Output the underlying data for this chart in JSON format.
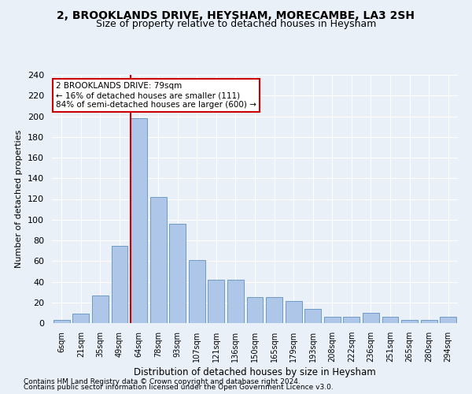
{
  "title1": "2, BROOKLANDS DRIVE, HEYSHAM, MORECAMBE, LA3 2SH",
  "title2": "Size of property relative to detached houses in Heysham",
  "xlabel": "Distribution of detached houses by size in Heysham",
  "ylabel": "Number of detached properties",
  "categories": [
    "6sqm",
    "21sqm",
    "35sqm",
    "49sqm",
    "64sqm",
    "78sqm",
    "93sqm",
    "107sqm",
    "121sqm",
    "136sqm",
    "150sqm",
    "165sqm",
    "179sqm",
    "193sqm",
    "208sqm",
    "222sqm",
    "236sqm",
    "251sqm",
    "265sqm",
    "280sqm",
    "294sqm"
  ],
  "values": [
    3,
    9,
    27,
    75,
    198,
    122,
    96,
    61,
    42,
    42,
    25,
    25,
    21,
    14,
    6,
    6,
    10,
    6,
    3,
    3,
    6
  ],
  "bar_color": "#aec6e8",
  "bar_edge_color": "#6090c0",
  "red_line_index": 4,
  "ylim": [
    0,
    240
  ],
  "yticks": [
    0,
    20,
    40,
    60,
    80,
    100,
    120,
    140,
    160,
    180,
    200,
    220,
    240
  ],
  "annotation_line1": "2 BROOKLANDS DRIVE: 79sqm",
  "annotation_line2": "← 16% of detached houses are smaller (111)",
  "annotation_line3": "84% of semi-detached houses are larger (600) →",
  "annotation_box_color": "#ffffff",
  "annotation_box_edge_color": "#cc0000",
  "footer1": "Contains HM Land Registry data © Crown copyright and database right 2024.",
  "footer2": "Contains public sector information licensed under the Open Government Licence v3.0.",
  "bg_color": "#eaf0f8",
  "grid_color": "#ffffff",
  "title1_fontsize": 10,
  "title2_fontsize": 9,
  "ann_fontsize": 7.5,
  "footer_fontsize": 6.5
}
